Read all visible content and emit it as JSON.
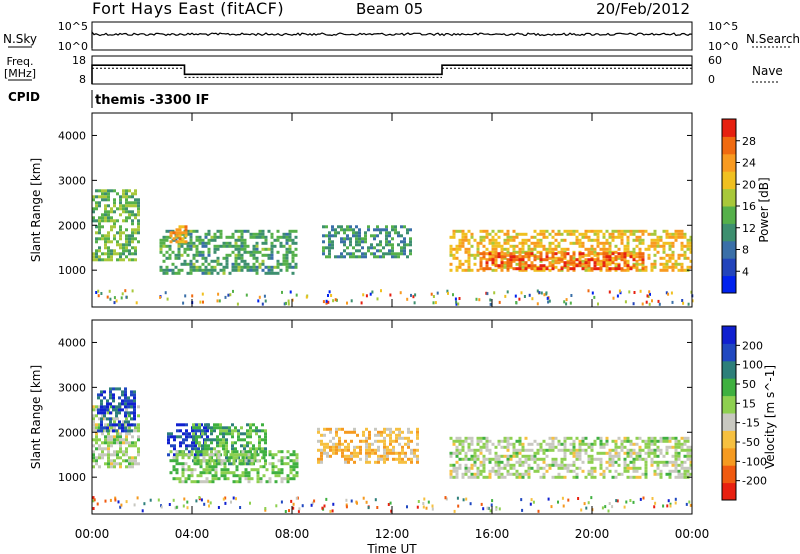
{
  "header": {
    "radar": "Fort Hays East (fitACF)",
    "beam": "Beam 05",
    "date": "20/Feb/2012"
  },
  "noise_panel": {
    "left_label": "N.Sky",
    "right_label": "N.Search",
    "left_ticks": [
      "10^5",
      "10^0"
    ],
    "right_ticks": [
      "10^5",
      "10^0"
    ]
  },
  "freq_panel": {
    "left_label_1": "Freq.",
    "left_label_2": "[MHz]",
    "left_ticks": [
      "18",
      "8"
    ],
    "right_label": "Nave",
    "right_ticks": [
      "60",
      "0"
    ],
    "freq_steps": [
      {
        "t0": 0.0,
        "t1": 3.7,
        "mhz": 15.0
      },
      {
        "t0": 3.7,
        "t1": 14.0,
        "mhz": 11.2
      },
      {
        "t0": 14.0,
        "t1": 24.0,
        "mhz": 15.0
      }
    ]
  },
  "cpid": {
    "label": "CPID",
    "text": "themis -3300 IF"
  },
  "x_axis": {
    "label": "Time UT",
    "ticks": [
      "00:00",
      "04:00",
      "08:00",
      "12:00",
      "16:00",
      "20:00",
      "00:00"
    ],
    "range_hours": [
      0,
      24
    ]
  },
  "chart_data": [
    {
      "type": "heatmap",
      "title": "",
      "xlabel": "",
      "ylabel": "Slant Range [km]",
      "ylim": [
        180,
        4500
      ],
      "yticks": [
        "1000",
        "2000",
        "3000",
        "4000"
      ],
      "colorbar": {
        "label": "Power [dB]",
        "ticks": [
          "4",
          "8",
          "12",
          "16",
          "20",
          "24",
          "28"
        ],
        "range": [
          0,
          30
        ],
        "colors": [
          "#0022ee",
          "#2244bb",
          "#3a6fa8",
          "#3d8f6f",
          "#55b04a",
          "#a8c83a",
          "#f0c020",
          "#f89a20",
          "#f06a10",
          "#e62010"
        ]
      },
      "regions": [
        {
          "t0": 0.0,
          "t1": 1.9,
          "r0": 1200,
          "r1": 2800,
          "value": 14
        },
        {
          "t0": 2.7,
          "t1": 8.2,
          "r0": 900,
          "r1": 1900,
          "value": 12
        },
        {
          "t0": 3.1,
          "t1": 3.8,
          "r0": 1600,
          "r1": 2000,
          "value": 22
        },
        {
          "t0": 9.2,
          "t1": 12.8,
          "r0": 1300,
          "r1": 2000,
          "value": 10
        },
        {
          "t0": 14.3,
          "t1": 24.0,
          "r0": 1000,
          "r1": 1900,
          "value": 20
        },
        {
          "t0": 15.5,
          "t1": 22.0,
          "r0": 1050,
          "r1": 1400,
          "value": 26
        }
      ]
    },
    {
      "type": "heatmap",
      "title": "",
      "xlabel": "Time UT",
      "ylabel": "Slant Range [km]",
      "ylim": [
        180,
        4500
      ],
      "yticks": [
        "1000",
        "2000",
        "3000",
        "4000"
      ],
      "colorbar": {
        "label": "Velocity [m s^-1]",
        "ticks": [
          "200",
          "100",
          "50",
          "15",
          "-15",
          "-50",
          "-100",
          "-200"
        ],
        "range": [
          -250,
          250
        ],
        "colors": [
          "#e82010",
          "#f05a10",
          "#f59a20",
          "#f6c040",
          "#c8c8c0",
          "#8ed050",
          "#3fb040",
          "#2d7f7a",
          "#2048c0",
          "#1020d0"
        ]
      },
      "regions": [
        {
          "t0": 0.0,
          "t1": 1.9,
          "r0": 1200,
          "r1": 2600,
          "value": 0
        },
        {
          "t0": 0.2,
          "t1": 1.7,
          "r0": 2000,
          "r1": 3000,
          "value": 180
        },
        {
          "t0": 3.0,
          "t1": 4.6,
          "r0": 1500,
          "r1": 2200,
          "value": 200
        },
        {
          "t0": 4.0,
          "t1": 7.0,
          "r0": 1300,
          "r1": 2200,
          "value": 80
        },
        {
          "t0": 3.1,
          "t1": 8.2,
          "r0": 900,
          "r1": 1600,
          "value": 40
        },
        {
          "t0": 9.0,
          "t1": 13.0,
          "r0": 1300,
          "r1": 2100,
          "value": -80
        },
        {
          "t0": 14.3,
          "t1": 24.0,
          "r0": 1000,
          "r1": 1900,
          "value": 0
        }
      ]
    }
  ]
}
